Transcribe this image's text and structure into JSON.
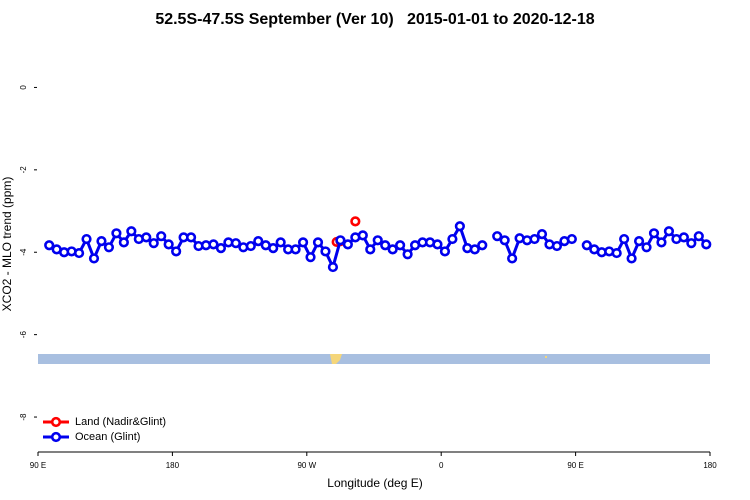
{
  "chart_data": {
    "type": "line",
    "title": "52.5S-47.5S September (Ver 10)   2015-01-01 to 2020-12-18",
    "xlabel": "Longitude (deg E)",
    "ylabel": "XCO2 - MLO trend (ppm)",
    "xlim": [
      90,
      540
    ],
    "xticks": [
      {
        "value": 90,
        "label": "90 E"
      },
      180,
      {
        "value": 270,
        "label": "90 W"
      },
      {
        "value": 360,
        "label": "0"
      },
      {
        "value": 450,
        "label": "90 E"
      },
      {
        "value": 540,
        "label": "180"
      }
    ],
    "ylim": [
      -8.8,
      1.2
    ],
    "yticks": [
      0,
      -2,
      -4,
      -6,
      -8
    ],
    "legend": "bottom-left",
    "series": [
      {
        "name": "Land (Nadir&Glint)",
        "color": "#ff0000",
        "x": [
          290,
          292.5,
          297.5,
          302.5
        ],
        "values": [
          -3.75,
          -3.73,
          null,
          -3.25
        ]
      },
      {
        "name": "Ocean (Glint)",
        "color": "#0000ee",
        "x": [
          97.5,
          102.5,
          107.5,
          112.5,
          117.5,
          122.5,
          127.5,
          132.5,
          137.5,
          142.5,
          147.5,
          152.5,
          157.5,
          162.5,
          167.5,
          172.5,
          177.5,
          182.5,
          187.5,
          192.5,
          197.5,
          202.5,
          207.5,
          212.5,
          217.5,
          222.5,
          227.5,
          232.5,
          237.5,
          242.5,
          247.5,
          252.5,
          257.5,
          262.5,
          267.5,
          272.5,
          277.5,
          282.5,
          287.5,
          292.5,
          297.5,
          302.5,
          307.5,
          312.5,
          317.5,
          322.5,
          327.5,
          332.5,
          337.5,
          342.5,
          347.5,
          352.5,
          357.5,
          362.5,
          367.5,
          372.5,
          377.5,
          382.5,
          387.5,
          392.5,
          397.5,
          402.5,
          407.5,
          412.5,
          417.5,
          422.5,
          427.5,
          432.5,
          437.5,
          442.5,
          447.5,
          452.5,
          457.5,
          462.5,
          467.5,
          472.5,
          477.5,
          482.5,
          487.5,
          492.5,
          497.5,
          502.5,
          507.5,
          512.5,
          517.5,
          522.5,
          527.5,
          532.5,
          537.5
        ],
        "values": [
          -3.83,
          -3.93,
          -4.0,
          -3.98,
          -4.02,
          -3.68,
          -4.15,
          -3.73,
          -3.88,
          -3.54,
          -3.76,
          -3.49,
          -3.68,
          -3.64,
          -3.78,
          -3.61,
          -3.81,
          -3.98,
          -3.64,
          -3.64,
          -3.85,
          -3.83,
          -3.81,
          -3.9,
          -3.76,
          -3.78,
          -3.88,
          -3.85,
          -3.73,
          -3.83,
          -3.9,
          -3.76,
          -3.93,
          -3.93,
          -3.76,
          -4.12,
          -3.76,
          -3.98,
          -4.36,
          -3.71,
          -3.81,
          -3.64,
          -3.59,
          -3.93,
          -3.71,
          -3.83,
          -3.93,
          -3.83,
          -4.05,
          -3.83,
          -3.76,
          -3.76,
          -3.81,
          -3.98,
          -3.68,
          -3.37,
          -3.9,
          -3.93,
          -3.83,
          null,
          -3.61,
          -3.71,
          -4.15,
          -3.66,
          -3.71,
          -3.68,
          -3.56,
          -3.81,
          -3.85,
          -3.73,
          -3.68,
          null,
          -3.83,
          -3.93,
          -4.0,
          -3.98,
          -4.02,
          -3.68,
          -4.15,
          -3.73,
          -3.88,
          -3.54,
          -3.76,
          -3.49,
          -3.68,
          -3.64,
          -3.78,
          -3.61,
          -3.81
        ]
      }
    ]
  }
}
